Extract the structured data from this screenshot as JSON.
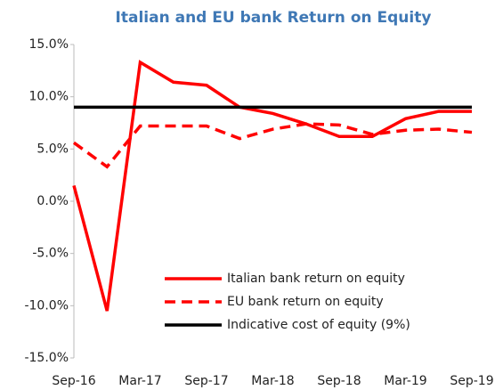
{
  "chart_data": {
    "type": "line",
    "title": "Italian and EU bank Return on Equity",
    "categories": [
      "Sep-16",
      null,
      "Mar-17",
      null,
      "Sep-17",
      null,
      "Mar-18",
      null,
      "Sep-18",
      null,
      "Mar-19",
      null,
      "Sep-19"
    ],
    "series": [
      {
        "name": "Italian bank return on equity",
        "color": "#ff0000",
        "style": "solid",
        "values": [
          1.5,
          -10.5,
          13.3,
          11.4,
          11.1,
          9.0,
          8.4,
          7.4,
          6.2,
          6.2,
          7.9,
          8.6,
          8.6
        ]
      },
      {
        "name": "EU bank return on equity",
        "color": "#ff0000",
        "style": "dashed",
        "values": [
          5.6,
          3.3,
          7.2,
          7.2,
          7.2,
          6.0,
          6.9,
          7.4,
          7.3,
          6.4,
          6.8,
          6.9,
          6.6
        ]
      },
      {
        "name": "Indicative cost of equity (9%)",
        "color": "#000000",
        "style": "solid",
        "values": [
          9,
          9,
          9,
          9,
          9,
          9,
          9,
          9,
          9,
          9,
          9,
          9,
          9
        ]
      }
    ],
    "ylim": [
      -15,
      15
    ],
    "yticks": [
      {
        "value": -15,
        "label": "-15.0%"
      },
      {
        "value": -10,
        "label": "-10.0%"
      },
      {
        "value": -5,
        "label": "-5.0%"
      },
      {
        "value": 0,
        "label": "0.0%"
      },
      {
        "value": 5,
        "label": "5.0%"
      },
      {
        "value": 10,
        "label": "10.0%"
      },
      {
        "value": 15,
        "label": "15.0%"
      }
    ],
    "grid": false,
    "legend": "lower right"
  }
}
